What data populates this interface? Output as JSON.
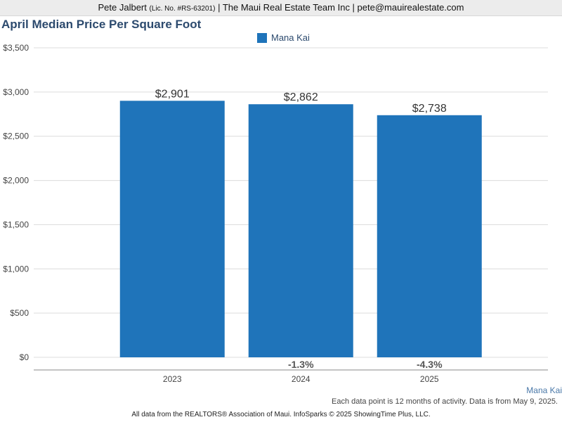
{
  "header": {
    "name": "Pete Jalbert",
    "license": "(Lic. No. #RS-63201)",
    "rest": "| The Maui Real Estate Team Inc | pete@mauirealestate.com"
  },
  "colors": {
    "bar": "#1f74ba",
    "title": "#2c4a6e"
  },
  "chart_data": {
    "type": "bar",
    "title": "April Median Price Per Square Foot",
    "xlabel": "",
    "ylabel": "",
    "categories": [
      "2023",
      "2024",
      "2025"
    ],
    "series": [
      {
        "name": "Mana Kai",
        "values": [
          2901,
          2862,
          2738
        ]
      }
    ],
    "value_labels": [
      "$2,901",
      "$2,862",
      "$2,738"
    ],
    "change_labels": [
      "",
      "-1.3%",
      "-4.3%"
    ],
    "ylim": [
      0,
      3500
    ],
    "yticks": [
      0,
      500,
      1000,
      1500,
      2000,
      2500,
      3000,
      3500
    ],
    "ytick_labels": [
      "$0",
      "$500",
      "$1,000",
      "$1,500",
      "$2,000",
      "$2,500",
      "$3,000",
      "$3,500"
    ],
    "grid": true,
    "legend": "top-center"
  },
  "series_tag": "Mana Kai",
  "note": "Each data point is 12 months of activity. Data is from May 9, 2025.",
  "footer": "All data from the REALTORS® Association of Maui. InfoSparks © 2025 ShowingTime Plus, LLC."
}
